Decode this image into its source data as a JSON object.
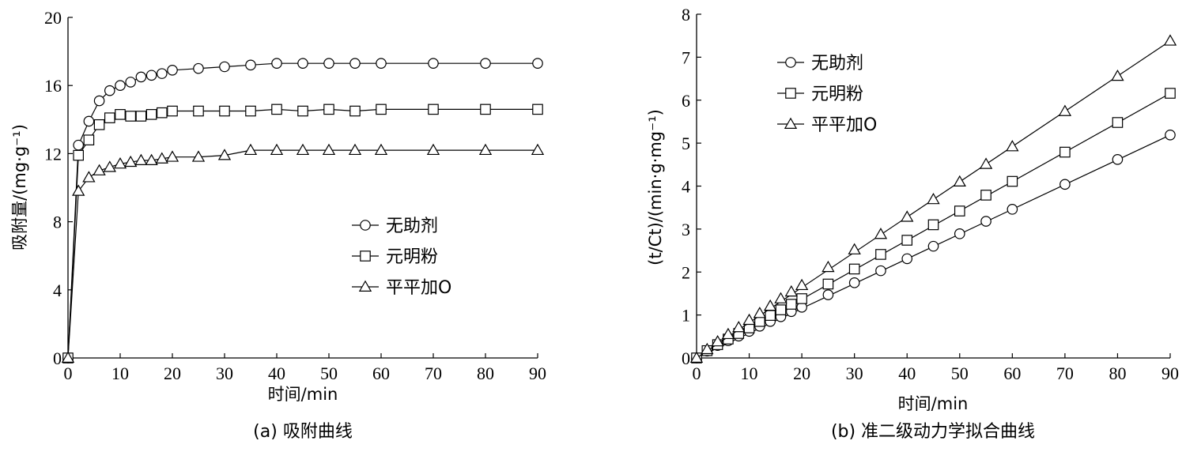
{
  "chart_data": [
    {
      "type": "line",
      "caption": "(a) 吸附曲线",
      "xlabel": "时间/min",
      "ylabel": "吸附量/(mg·g⁻¹)",
      "xlim": [
        0,
        90
      ],
      "ylim": [
        0,
        20
      ],
      "xticks": [
        0,
        10,
        20,
        30,
        40,
        50,
        60,
        70,
        80,
        90
      ],
      "yticks": [
        0,
        4,
        8,
        12,
        16,
        20
      ],
      "legend_position": "right-middle",
      "series": [
        {
          "name": "无助剂",
          "marker": "circle",
          "x": [
            0,
            2,
            4,
            6,
            8,
            10,
            12,
            14,
            16,
            18,
            20,
            25,
            30,
            35,
            40,
            45,
            50,
            55,
            60,
            70,
            80,
            90
          ],
          "y": [
            0,
            12.5,
            13.9,
            15.1,
            15.7,
            16.0,
            16.2,
            16.5,
            16.6,
            16.7,
            16.9,
            17.0,
            17.1,
            17.2,
            17.3,
            17.3,
            17.3,
            17.3,
            17.3,
            17.3,
            17.3,
            17.3
          ]
        },
        {
          "name": "元明粉",
          "marker": "square",
          "x": [
            0,
            2,
            4,
            6,
            8,
            10,
            12,
            14,
            16,
            18,
            20,
            25,
            30,
            35,
            40,
            45,
            50,
            55,
            60,
            70,
            80,
            90
          ],
          "y": [
            0,
            11.9,
            12.8,
            13.7,
            14.1,
            14.3,
            14.2,
            14.2,
            14.3,
            14.4,
            14.5,
            14.5,
            14.5,
            14.5,
            14.6,
            14.5,
            14.6,
            14.5,
            14.6,
            14.6,
            14.6,
            14.6
          ]
        },
        {
          "name": "平平加O",
          "marker": "triangle",
          "x": [
            0,
            2,
            4,
            6,
            8,
            10,
            12,
            14,
            16,
            18,
            20,
            25,
            30,
            35,
            40,
            45,
            50,
            55,
            60,
            70,
            80,
            90
          ],
          "y": [
            0,
            9.8,
            10.6,
            11.0,
            11.2,
            11.4,
            11.5,
            11.6,
            11.6,
            11.7,
            11.8,
            11.8,
            11.9,
            12.2,
            12.2,
            12.2,
            12.2,
            12.2,
            12.2,
            12.2,
            12.2,
            12.2
          ]
        }
      ]
    },
    {
      "type": "line",
      "caption": "(b) 准二级动力学拟合曲线",
      "xlabel": "时间/min",
      "ylabel": "(t/Ct)/(min·g·mg⁻¹)",
      "xlim": [
        0,
        90
      ],
      "ylim": [
        0,
        8
      ],
      "xticks": [
        0,
        10,
        20,
        30,
        40,
        50,
        60,
        70,
        80,
        90
      ],
      "yticks": [
        0,
        1,
        2,
        3,
        4,
        5,
        6,
        7,
        8
      ],
      "legend_position": "top-left",
      "series": [
        {
          "name": "无助剂",
          "marker": "circle",
          "x": [
            0,
            2,
            4,
            6,
            8,
            10,
            12,
            14,
            16,
            18,
            20,
            25,
            30,
            35,
            40,
            45,
            50,
            55,
            60,
            70,
            80,
            90
          ],
          "y": [
            0,
            0.16,
            0.29,
            0.4,
            0.51,
            0.62,
            0.74,
            0.85,
            0.96,
            1.08,
            1.18,
            1.47,
            1.75,
            2.03,
            2.31,
            2.6,
            2.89,
            3.18,
            3.46,
            4.04,
            4.62,
            5.19
          ],
          "fit": [
            [
              0,
              0
            ],
            [
              90,
              5.19
            ]
          ]
        },
        {
          "name": "元明粉",
          "marker": "square",
          "x": [
            0,
            2,
            4,
            6,
            8,
            10,
            12,
            14,
            16,
            18,
            20,
            25,
            30,
            35,
            40,
            45,
            50,
            55,
            60,
            70,
            80,
            90
          ],
          "y": [
            0,
            0.17,
            0.31,
            0.44,
            0.57,
            0.7,
            0.85,
            0.99,
            1.12,
            1.25,
            1.38,
            1.72,
            2.07,
            2.41,
            2.74,
            3.1,
            3.42,
            3.79,
            4.11,
            4.79,
            5.48,
            6.16
          ],
          "fit": [
            [
              0,
              0
            ],
            [
              90,
              6.16
            ]
          ]
        },
        {
          "name": "平平加O",
          "marker": "triangle",
          "x": [
            0,
            2,
            4,
            6,
            8,
            10,
            12,
            14,
            16,
            18,
            20,
            25,
            30,
            35,
            40,
            45,
            50,
            55,
            60,
            70,
            80,
            90
          ],
          "y": [
            0,
            0.2,
            0.38,
            0.55,
            0.71,
            0.88,
            1.04,
            1.21,
            1.38,
            1.54,
            1.69,
            2.11,
            2.52,
            2.88,
            3.28,
            3.69,
            4.1,
            4.51,
            4.92,
            5.74,
            6.56,
            7.38
          ],
          "fit": [
            [
              0,
              0
            ],
            [
              90,
              7.38
            ]
          ]
        }
      ]
    }
  ]
}
